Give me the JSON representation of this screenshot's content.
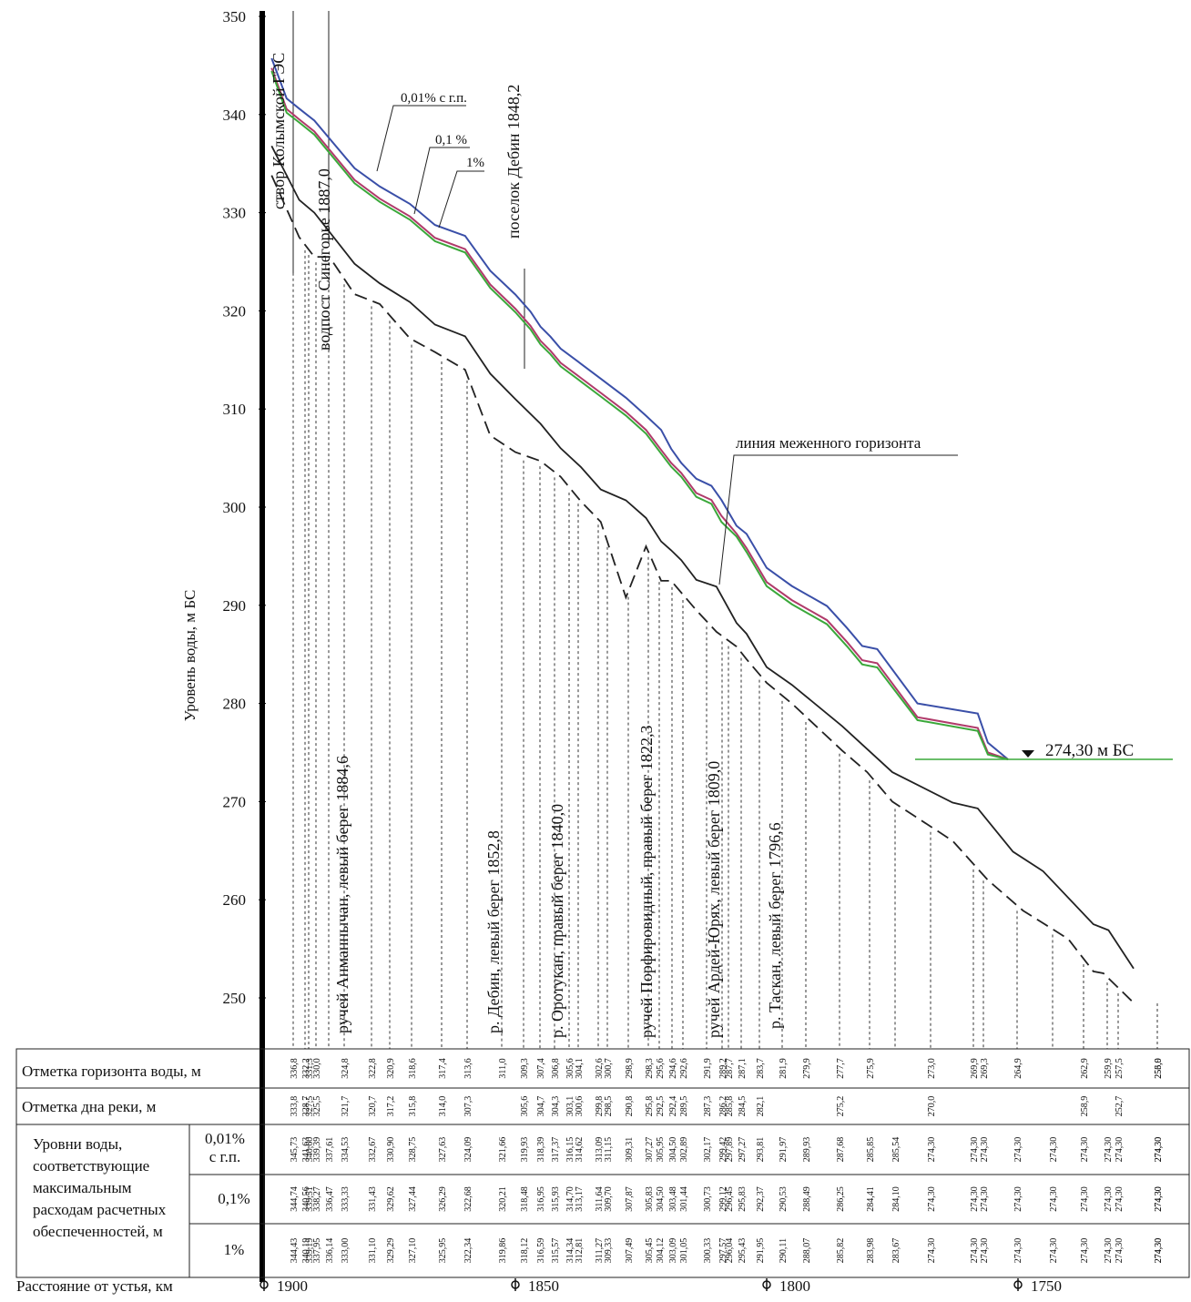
{
  "chart_data": {
    "type": "line",
    "ylabel": "Уровень воды, м БС",
    "xlabel": "Расстояние от устья, км",
    "ylim": [
      245,
      350
    ],
    "xlim": [
      1905,
      1730
    ],
    "yticks": [
      250,
      260,
      270,
      280,
      290,
      300,
      310,
      320,
      330,
      340,
      350
    ],
    "xticks": [
      "1900",
      "1850",
      "1800",
      "1750"
    ],
    "xtick_values": [
      1900,
      1850,
      1800,
      1750
    ],
    "series": [
      {
        "name": "0,01% с г.п.",
        "color": "#3a4fa8",
        "x": [
          1898.5,
          1895.5,
          1893,
          1890,
          1882,
          1877,
          1871,
          1866,
          1860,
          1855,
          1850,
          1847,
          1845,
          1843,
          1841,
          1837,
          1833,
          1828,
          1824,
          1821,
          1819,
          1817,
          1814,
          1811,
          1809,
          1806,
          1804,
          1800,
          1795,
          1788,
          1784,
          1781,
          1778,
          1770,
          1758,
          1756,
          1752
        ],
        "y": [
          345.73,
          341.63,
          340.6,
          339.39,
          334.53,
          332.67,
          330.9,
          328.75,
          327.63,
          324.09,
          321.66,
          319.93,
          318.39,
          317.37,
          316.15,
          314.62,
          313.09,
          311.15,
          309.31,
          307.87,
          305.95,
          304.5,
          302.89,
          302.17,
          300.73,
          298.1,
          297.27,
          293.81,
          291.97,
          289.93,
          287.68,
          285.85,
          285.54,
          280.0,
          278.97,
          276.0,
          274.3
        ]
      },
      {
        "name": "0,1 %",
        "color": "#b03a6a",
        "x": [
          1898.5,
          1895.5,
          1893,
          1890,
          1882,
          1877,
          1871,
          1866,
          1860,
          1855,
          1850,
          1847,
          1845,
          1843,
          1841,
          1837,
          1833,
          1828,
          1824,
          1821,
          1819,
          1817,
          1814,
          1811,
          1809,
          1806,
          1804,
          1800,
          1795,
          1788,
          1784,
          1781,
          1778,
          1770,
          1758,
          1756,
          1752
        ],
        "y": [
          344.74,
          340.56,
          339.51,
          338.27,
          333.33,
          331.43,
          329.62,
          327.44,
          326.29,
          322.68,
          320.21,
          318.48,
          316.95,
          315.93,
          314.7,
          313.17,
          311.64,
          309.7,
          307.87,
          305.83,
          304.5,
          303.48,
          301.44,
          300.73,
          299.12,
          297.3,
          295.83,
          292.37,
          290.53,
          288.49,
          286.25,
          284.41,
          284.1,
          278.6,
          277.5,
          275.0,
          274.3
        ]
      },
      {
        "name": "1%",
        "color": "#3aa83a",
        "x": [
          1898.5,
          1895.5,
          1893,
          1890,
          1882,
          1877,
          1871,
          1866,
          1860,
          1855,
          1850,
          1847,
          1845,
          1843,
          1841,
          1837,
          1833,
          1828,
          1824,
          1821,
          1819,
          1817,
          1814,
          1811,
          1809,
          1806,
          1804,
          1800,
          1795,
          1788,
          1784,
          1781,
          1778,
          1770,
          1758,
          1756,
          1752
        ],
        "y": [
          344.43,
          340.19,
          339.19,
          337.95,
          333.0,
          331.1,
          329.29,
          327.1,
          325.95,
          322.34,
          319.86,
          318.12,
          316.59,
          315.57,
          314.34,
          312.81,
          311.27,
          309.33,
          307.49,
          305.45,
          304.12,
          303.09,
          301.05,
          300.33,
          298.5,
          297.0,
          295.43,
          291.95,
          290.11,
          288.07,
          285.82,
          283.98,
          283.67,
          278.3,
          277.2,
          274.8,
          274.3
        ]
      },
      {
        "name": "",
        "color": "#222222",
        "dash": false,
        "x": [
          1898.5,
          1893,
          1890,
          1882,
          1877,
          1871,
          1866,
          1860,
          1855,
          1850,
          1845,
          1841,
          1837,
          1833,
          1828,
          1824,
          1821,
          1819,
          1817,
          1814,
          1810,
          1806,
          1804,
          1800,
          1795,
          1785,
          1775,
          1763,
          1758,
          1751,
          1745,
          1735,
          1732,
          1727
        ],
        "y": [
          336.8,
          331.3,
          330.0,
          324.8,
          322.8,
          320.9,
          318.6,
          317.4,
          313.6,
          311.0,
          308.5,
          306.0,
          304.1,
          301.8,
          300.7,
          298.9,
          296.5,
          295.6,
          294.6,
          292.6,
          291.9,
          288.2,
          287.1,
          283.7,
          281.9,
          277.7,
          273.0,
          269.9,
          269.3,
          264.9,
          262.9,
          257.5,
          256.9,
          253.0
        ]
      },
      {
        "name": "",
        "color": "#222222",
        "dash": true,
        "x": [
          1898.5,
          1893,
          1890,
          1887,
          1882,
          1877,
          1871,
          1866,
          1860,
          1855,
          1850,
          1845,
          1841,
          1837,
          1833,
          1828,
          1824,
          1821,
          1819,
          1814,
          1810,
          1806,
          1804,
          1800,
          1795,
          1785,
          1780,
          1775,
          1763,
          1756,
          1749,
          1740,
          1735,
          1733,
          1727
        ],
        "y": [
          333.8,
          327.5,
          325.5,
          325.5,
          321.7,
          320.7,
          317.2,
          315.8,
          314.0,
          307.3,
          305.6,
          304.7,
          303.1,
          300.6,
          298.5,
          290.8,
          296.0,
          292.5,
          292.5,
          289.5,
          287.3,
          285.8,
          284.5,
          282.1,
          280.0,
          275.2,
          273.0,
          270.0,
          266.0,
          262.0,
          258.9,
          256.0,
          252.7,
          252.5,
          249.5
        ]
      }
    ],
    "annotations": [
      "створ Колымской ГЭС",
      "водпост Синегорье 1887,0",
      "ручей Анманнычан, левый берег 1884,6",
      "поселок Дебин 1848,2",
      "р. Дебин, левый берег 1852,8",
      "р. Оротукан, правый берег 1840,0",
      "ручей Порфировидный, правый берег 1822,3",
      "ручей Ардей-Юрях, левый берег 1809,0",
      "р. Таскан, левый берег 1796,6",
      "линия меженного горизонта",
      "274,30 м БС",
      "0,01% с г.п.",
      "0,1 %",
      "1%"
    ],
    "tributaries": [
      {
        "km": 1898.5,
        "label": "створ Колымской ГЭС"
      },
      {
        "km": 1887.0,
        "label": "водпост Синегорье 1887,0"
      },
      {
        "km": 1884.6,
        "label": "ручей Анманнычан, левый берег 1884,6"
      },
      {
        "km": 1848.2,
        "label": "поселок Дебин 1848,2"
      },
      {
        "km": 1852.8,
        "label": "р. Дебин, левый берег 1852,8"
      },
      {
        "km": 1840.0,
        "label": "р. Оротукан, правый берег 1840,0"
      },
      {
        "km": 1822.3,
        "label": "ручей Порфировидный, правый берег 1822,3"
      },
      {
        "km": 1809.0,
        "label": "ручей Ардей-Юрях, левый берег 1809,0"
      },
      {
        "km": 1796.6,
        "label": "р. Таскан, левый берег 1796,6"
      }
    ],
    "reservoir_level": 274.3,
    "legend": "callouts"
  },
  "table": {
    "row_water_label": "Отметка горизонта воды, м",
    "row_bed_label": "Отметка дна реки, м",
    "group_label_lines": [
      "Уровни воды,",
      "соответствующие",
      "максимальным",
      "расходам расчетных",
      "обеспеченностей, м"
    ],
    "p001_label_lines": [
      "0,01%",
      "с г.п."
    ],
    "p01_label": "0,1%",
    "p1_label": "1%",
    "distance_label": "Расстояние от устья, км",
    "columns": [
      {
        "water": "336,8",
        "bed": "333,8",
        "p001": "345,73",
        "p01": "344,74",
        "p1": "344,43"
      },
      {
        "water": "332,2",
        "bed": "328,7",
        "p001": "341,63",
        "p01": "340,56",
        "p1": "340,19"
      },
      {
        "water": "331,3",
        "bed": "327,5",
        "p001": "340,60",
        "p01": "339,51",
        "p1": "339,19"
      },
      {
        "water": "330,0",
        "bed": "325,5",
        "p001": "339,39",
        "p01": "338,27",
        "p1": "337,95"
      },
      {
        "water": "",
        "bed": "",
        "p001": "337,61",
        "p01": "336,47",
        "p1": "336,14"
      },
      {
        "water": "324,8",
        "bed": "321,7",
        "p001": "334,53",
        "p01": "333,33",
        "p1": "333,00"
      },
      {
        "water": "322,8",
        "bed": "320,7",
        "p001": "332,67",
        "p01": "331,43",
        "p1": "331,10"
      },
      {
        "water": "320,9",
        "bed": "317,2",
        "p001": "330,90",
        "p01": "329,62",
        "p1": "329,29"
      },
      {
        "water": "318,6",
        "bed": "315,8",
        "p001": "328,75",
        "p01": "327,44",
        "p1": "327,10"
      },
      {
        "water": "317,4",
        "bed": "314,0",
        "p001": "327,63",
        "p01": "326,29",
        "p1": "325,95"
      },
      {
        "water": "313,6",
        "bed": "307,3",
        "p001": "324,09",
        "p01": "322,68",
        "p1": "322,34"
      },
      {
        "water": "311,0",
        "bed": "",
        "p001": "321,66",
        "p01": "320,21",
        "p1": "319,86"
      },
      {
        "water": "309,3",
        "bed": "305,6",
        "p001": "319,93",
        "p01": "318,48",
        "p1": "318,12"
      },
      {
        "water": "307,4",
        "bed": "304,7",
        "p001": "318,39",
        "p01": "316,95",
        "p1": "316,59"
      },
      {
        "water": "306,8",
        "bed": "304,3",
        "p001": "317,37",
        "p01": "315,93",
        "p1": "315,57"
      },
      {
        "water": "305,6",
        "bed": "303,1",
        "p001": "316,15",
        "p01": "314,70",
        "p1": "314,34"
      },
      {
        "water": "304,1",
        "bed": "300,6",
        "p001": "314,62",
        "p01": "313,17",
        "p1": "312,81"
      },
      {
        "water": "302,6",
        "bed": "299,8",
        "p001": "313,09",
        "p01": "311,64",
        "p1": "311,27"
      },
      {
        "water": "300,7",
        "bed": "298,5",
        "p001": "311,15",
        "p01": "309,70",
        "p1": "309,33"
      },
      {
        "water": "298,9",
        "bed": "290,8",
        "p001": "309,31",
        "p01": "307,87",
        "p1": "307,49"
      },
      {
        "water": "298,3",
        "bed": "295,8",
        "p001": "307,27",
        "p01": "305,83",
        "p1": "305,45"
      },
      {
        "water": "295,6",
        "bed": "292,5",
        "p001": "305,95",
        "p01": "304,50",
        "p1": "304,12"
      },
      {
        "water": "294,6",
        "bed": "292,4",
        "p001": "304,50",
        "p01": "303,48",
        "p1": "303,09"
      },
      {
        "water": "292,6",
        "bed": "289,5",
        "p001": "302,89",
        "p01": "301,44",
        "p1": "301,05"
      },
      {
        "water": "291,9",
        "bed": "287,3",
        "p001": "302,17",
        "p01": "300,73",
        "p1": "300,33"
      },
      {
        "water": "289,2",
        "bed": "286,2",
        "p001": "299,42",
        "p01": "299,12",
        "p1": "297,57"
      },
      {
        "water": "287,7",
        "bed": "285,8",
        "p001": "297,89",
        "p01": "296,45",
        "p1": "296,04"
      },
      {
        "water": "287,1",
        "bed": "284,5",
        "p001": "297,27",
        "p01": "295,83",
        "p1": "295,43"
      },
      {
        "water": "283,7",
        "bed": "282,1",
        "p001": "293,81",
        "p01": "292,37",
        "p1": "291,95"
      },
      {
        "water": "281,9",
        "bed": "",
        "p001": "291,97",
        "p01": "290,53",
        "p1": "290,11"
      },
      {
        "water": "279,9",
        "bed": "",
        "p001": "289,93",
        "p01": "288,49",
        "p1": "288,07"
      },
      {
        "water": "277,7",
        "bed": "275,2",
        "p001": "287,68",
        "p01": "286,25",
        "p1": "285,82"
      },
      {
        "water": "275,9",
        "bed": "",
        "p001": "285,85",
        "p01": "284,41",
        "p1": "283,98"
      },
      {
        "water": "",
        "bed": "",
        "p001": "285,54",
        "p01": "284,10",
        "p1": "283,67"
      },
      {
        "water": "273,0",
        "bed": "270,0",
        "p001": "274,30",
        "p01": "274,30",
        "p1": "274,30"
      },
      {
        "water": "269,9",
        "bed": "",
        "p001": "274,30",
        "p01": "274,30",
        "p1": "274,30"
      },
      {
        "water": "269,3",
        "bed": "",
        "p001": "274,30",
        "p01": "274,30",
        "p1": "274,30"
      },
      {
        "water": "264,9",
        "bed": "",
        "p001": "274,30",
        "p01": "274,30",
        "p1": "274,30"
      },
      {
        "water": "",
        "bed": "",
        "p001": "274,30",
        "p01": "274,30",
        "p1": "274,30"
      },
      {
        "water": "262,9",
        "bed": "258,9",
        "p001": "274,30",
        "p01": "274,30",
        "p1": "274,30"
      },
      {
        "water": "259,9",
        "bed": "",
        "p001": "274,30",
        "p01": "274,30",
        "p1": "274,30"
      },
      {
        "water": "257,5",
        "bed": "252,7",
        "p001": "274,30",
        "p01": "274,30",
        "p1": "274,30"
      },
      {
        "water": "256,9",
        "bed": "",
        "p001": "274,30",
        "p01": "274,30",
        "p1": "274,30"
      },
      {
        "water": "253,0",
        "bed": "",
        "p001": "274,30",
        "p01": "274,30",
        "p1": "274,30"
      }
    ]
  }
}
